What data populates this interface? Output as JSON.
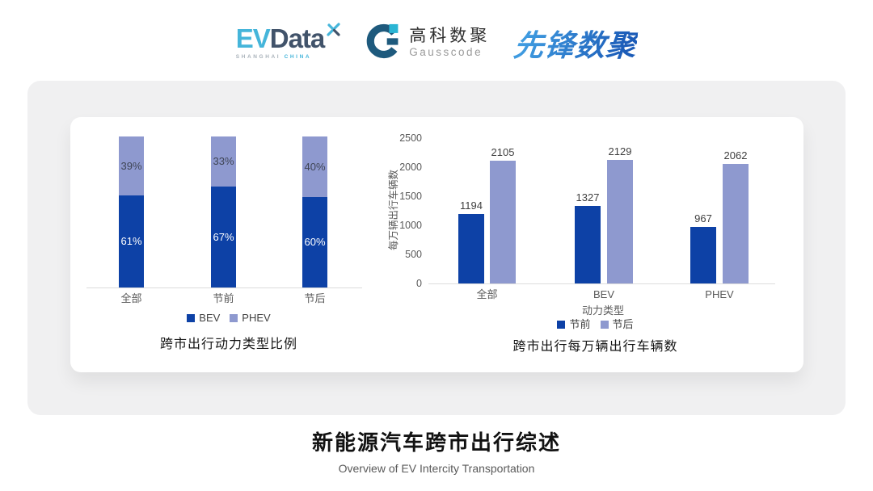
{
  "header": {
    "evdata": {
      "ev": "EV",
      "data": "Data",
      "sub_shanghai": "SHANGHAI",
      "sub_china": "CHINA"
    },
    "gausscode": {
      "cn": "高科数聚",
      "en": "Gausscode"
    },
    "pioneer": {
      "text": "先锋数聚"
    }
  },
  "colors": {
    "dark_blue": "#0d41a6",
    "light_blue": "#8e99cf",
    "evdata_cyan": "#45b5da",
    "evdata_slate": "#41536a",
    "gauss_navy": "#1e5a7d",
    "gauss_cyan": "#2ab5d4",
    "pioneer_blue": "#2b7ecb"
  },
  "chart_data": [
    {
      "type": "bar",
      "subtype": "stacked-percent",
      "title": "跨市出行动力类型比例",
      "categories": [
        "全部",
        "节前",
        "节后"
      ],
      "series": [
        {
          "name": "BEV",
          "values": [
            61,
            67,
            60
          ],
          "color": "#0d41a6",
          "label_color": "#ffffff"
        },
        {
          "name": "PHEV",
          "values": [
            39,
            33,
            40
          ],
          "color": "#8e99cf",
          "label_color": "#3f4555"
        }
      ],
      "value_suffix": "%",
      "ylim": [
        0,
        100
      ],
      "grid": false,
      "legend_position": "bottom"
    },
    {
      "type": "bar",
      "subtype": "grouped",
      "title": "跨市出行每万辆出行车辆数",
      "categories": [
        "全部",
        "BEV",
        "PHEV"
      ],
      "series": [
        {
          "name": "节前",
          "values": [
            1194,
            1327,
            967
          ],
          "color": "#0d41a6"
        },
        {
          "name": "节后",
          "values": [
            2105,
            2129,
            2062
          ],
          "color": "#8e99cf"
        }
      ],
      "xlabel": "动力类型",
      "ylabel": "每万辆出行车辆数",
      "yticks": [
        0,
        500,
        1000,
        1500,
        2000,
        2500
      ],
      "ylim": [
        0,
        2500
      ],
      "grid": false,
      "legend_position": "bottom"
    }
  ],
  "footer": {
    "title": "新能源汽车跨市出行综述",
    "subtitle": "Overview of EV Intercity Transportation"
  }
}
